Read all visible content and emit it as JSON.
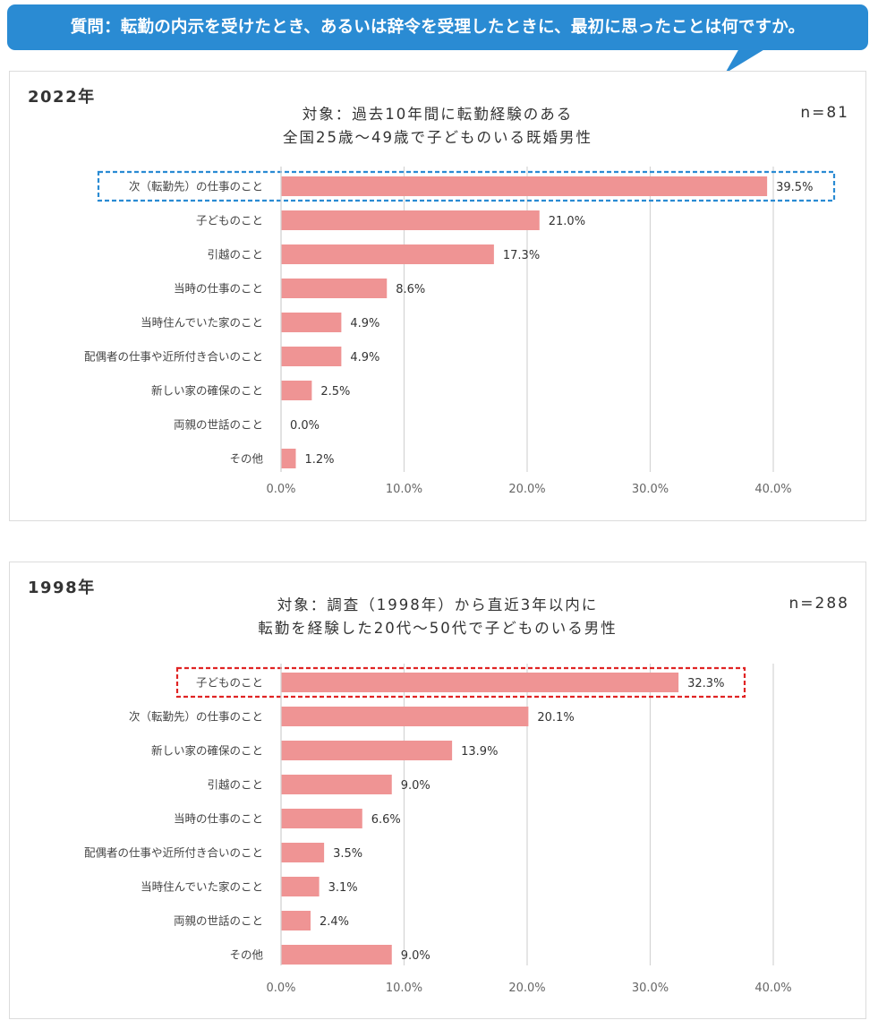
{
  "question": "質問：転勤の内示を受けたとき、あるいは辞令を受理したときに、最初に思ったことは何ですか。",
  "colors": {
    "bar": "#ef9494",
    "grid": "#d4d4d4",
    "highlight_2022": "#2a8bd3",
    "highlight_1998": "#e02424",
    "bubble": "#2a8bd3"
  },
  "charts": [
    {
      "year": "2022年",
      "subtitle_line1": "対象：過去10年間に転勤経験のある",
      "subtitle_line2": "全国25歳～49歳で子どものいる既婚男性",
      "n": "n=81",
      "highlighted_category": "次（転勤先）の仕事のこと",
      "chart_data": {
        "type": "bar",
        "orientation": "horizontal",
        "categories": [
          "次（転勤先）の仕事のこと",
          "子どものこと",
          "引越のこと",
          "当時の仕事のこと",
          "当時住んでいた家のこと",
          "配偶者の仕事や近所付き合いのこと",
          "新しい家の確保のこと",
          "両親の世話のこと",
          "その他"
        ],
        "values": [
          39.5,
          21.0,
          17.3,
          8.6,
          4.9,
          4.9,
          2.5,
          0.0,
          1.2
        ],
        "value_labels": [
          "39.5%",
          "21.0%",
          "17.3%",
          "8.6%",
          "4.9%",
          "4.9%",
          "2.5%",
          "0.0%",
          "1.2%"
        ],
        "xlim": [
          0,
          40
        ],
        "ticks": [
          0,
          10,
          20,
          30,
          40
        ],
        "tick_labels": [
          "0.0%",
          "10.0%",
          "20.0%",
          "30.0%",
          "40.0%"
        ],
        "grid": true
      }
    },
    {
      "year": "1998年",
      "subtitle_line1": "対象：調査（1998年）から直近3年以内に",
      "subtitle_line2": "転勤を経験した20代～50代で子どものいる男性",
      "n": "n=288",
      "highlighted_category": "子どものこと",
      "chart_data": {
        "type": "bar",
        "orientation": "horizontal",
        "categories": [
          "子どものこと",
          "次（転勤先）の仕事のこと",
          "新しい家の確保のこと",
          "引越のこと",
          "当時の仕事のこと",
          "配偶者の仕事や近所付き合いのこと",
          "当時住んでいた家のこと",
          "両親の世話のこと",
          "その他"
        ],
        "values": [
          32.3,
          20.1,
          13.9,
          9.0,
          6.6,
          3.5,
          3.1,
          2.4,
          9.0
        ],
        "value_labels": [
          "32.3%",
          "20.1%",
          "13.9%",
          "9.0%",
          "6.6%",
          "3.5%",
          "3.1%",
          "2.4%",
          "9.0%"
        ],
        "xlim": [
          0,
          40
        ],
        "ticks": [
          0,
          10,
          20,
          30,
          40
        ],
        "tick_labels": [
          "0.0%",
          "10.0%",
          "20.0%",
          "30.0%",
          "40.0%"
        ],
        "grid": true
      }
    }
  ]
}
